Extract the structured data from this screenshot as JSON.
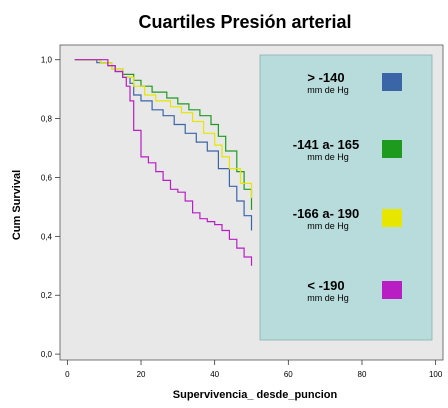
{
  "chart_data": {
    "type": "line",
    "title": "Cuartiles Presión arterial",
    "xlabel": "Supervivencia_ desde_puncion",
    "ylabel": "Cum Survival",
    "xlim": [
      -2,
      102
    ],
    "ylim": [
      -0.02,
      1.05
    ],
    "xticks": [
      0,
      20,
      40,
      60,
      80,
      100
    ],
    "yticks": [
      0.0,
      0.2,
      0.4,
      0.6,
      0.8,
      1.0
    ],
    "xtick_labels": [
      "0",
      "20",
      "40",
      "60",
      "80",
      "100"
    ],
    "ytick_labels": [
      "0,0",
      "0,2",
      "0,4",
      "0,6",
      "0,8",
      "1,0"
    ],
    "grid": false,
    "legend_position": "right",
    "colors": {
      "plot_background": "#e8e8e8",
      "legend_background": "#b8dcdc"
    },
    "series": [
      {
        "name": "> -140",
        "unit": "mm de Hg",
        "color": "#3a66a8",
        "x": [
          2,
          6,
          8,
          11,
          13,
          15,
          17,
          18,
          20,
          23,
          26,
          29,
          32,
          35,
          38,
          41,
          44,
          46,
          48,
          50
        ],
        "y": [
          1.0,
          1.0,
          0.99,
          0.98,
          0.96,
          0.94,
          0.92,
          0.88,
          0.86,
          0.83,
          0.81,
          0.78,
          0.75,
          0.72,
          0.69,
          0.63,
          0.57,
          0.52,
          0.47,
          0.42
        ]
      },
      {
        "name": "-141 a- 165",
        "unit": "mm de Hg",
        "color": "#1e9a1e",
        "x": [
          2,
          6,
          9,
          12,
          15,
          18,
          20,
          23,
          27,
          30,
          33,
          36,
          39,
          41,
          43,
          46,
          48,
          50
        ],
        "y": [
          1.0,
          1.0,
          0.99,
          0.97,
          0.95,
          0.93,
          0.91,
          0.89,
          0.87,
          0.85,
          0.83,
          0.81,
          0.78,
          0.74,
          0.69,
          0.62,
          0.56,
          0.49
        ]
      },
      {
        "name": "-166 a- 190",
        "unit": "mm de Hg",
        "color": "#e6e600",
        "x": [
          2,
          6,
          9,
          12,
          15,
          18,
          21,
          24,
          28,
          31,
          34,
          37,
          40,
          42,
          44,
          47,
          50
        ],
        "y": [
          1.0,
          1.0,
          0.99,
          0.97,
          0.94,
          0.91,
          0.88,
          0.86,
          0.84,
          0.82,
          0.79,
          0.75,
          0.71,
          0.67,
          0.63,
          0.58,
          0.53
        ]
      },
      {
        "name": "< -190",
        "unit": "mm de Hg",
        "color": "#b81ec4",
        "x": [
          2,
          8,
          11,
          13,
          15,
          16,
          17,
          18,
          20,
          22,
          24,
          26,
          28,
          30,
          32,
          34,
          36,
          38,
          40,
          42,
          44,
          46,
          48,
          50
        ],
        "y": [
          1.0,
          1.0,
          0.98,
          0.96,
          0.94,
          0.91,
          0.86,
          0.76,
          0.67,
          0.65,
          0.62,
          0.59,
          0.56,
          0.55,
          0.52,
          0.48,
          0.46,
          0.45,
          0.44,
          0.42,
          0.39,
          0.36,
          0.33,
          0.3
        ]
      }
    ]
  }
}
